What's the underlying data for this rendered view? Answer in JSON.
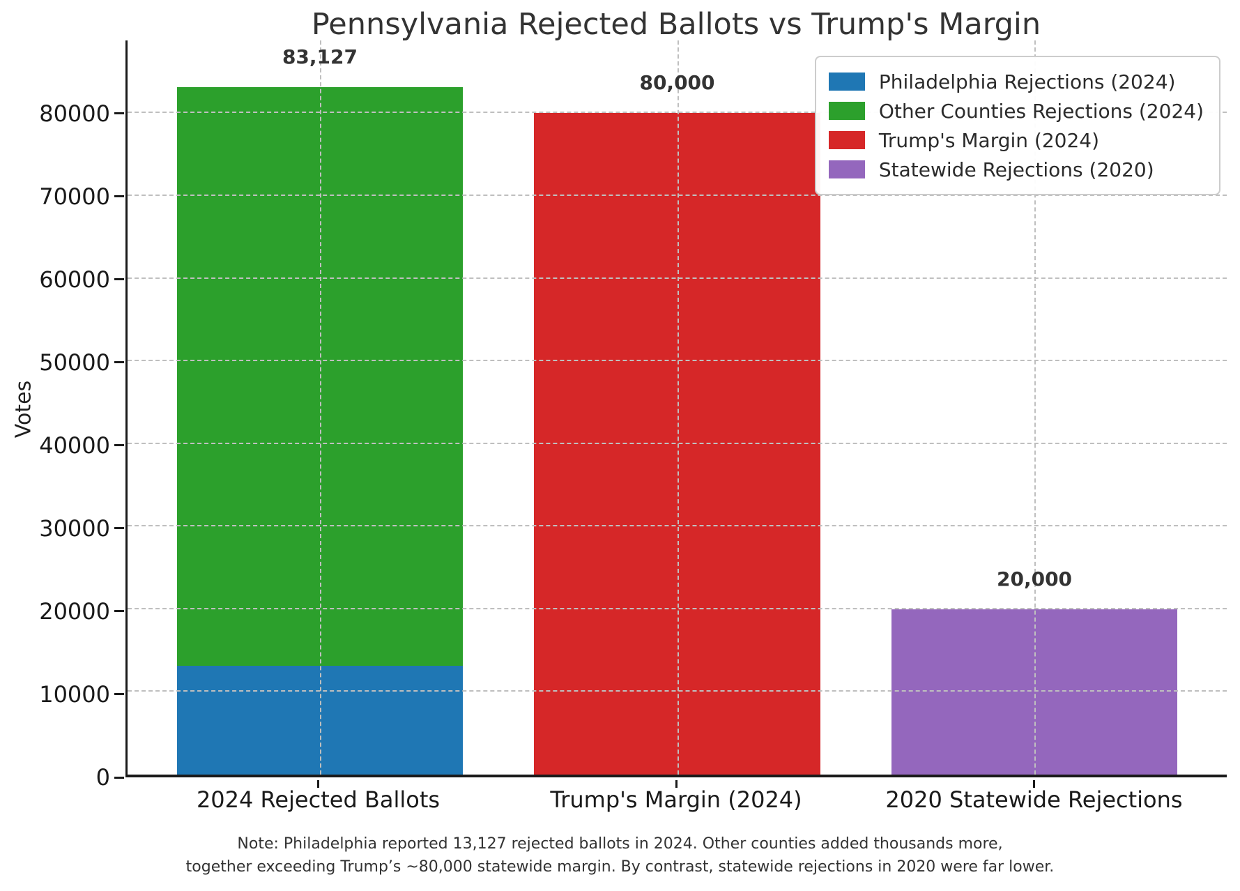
{
  "chart_data": {
    "type": "bar",
    "title": "Pennsylvania Rejected Ballots vs Trump's Margin",
    "xlabel": "",
    "ylabel": "Votes",
    "categories": [
      "2024 Rejected Ballots",
      "Trump's Margin (2024)",
      "2020 Statewide Rejections"
    ],
    "series": [
      {
        "name": "Philadelphia Rejections (2024)",
        "color": "#1f77b4",
        "values": [
          13127,
          0,
          0
        ]
      },
      {
        "name": "Other Counties Rejections (2024)",
        "color": "#2ca02c",
        "values": [
          70000,
          0,
          0
        ]
      },
      {
        "name": "Trump's Margin (2024)",
        "color": "#d62728",
        "values": [
          0,
          80000,
          0
        ]
      },
      {
        "name": "Statewide Rejections (2020)",
        "color": "#9467bd",
        "values": [
          0,
          0,
          20000
        ]
      }
    ],
    "stacked": true,
    "bar_totals": [
      83127,
      80000,
      20000
    ],
    "bar_value_labels": [
      "83,127",
      "80,000",
      "20,000"
    ],
    "yticks": [
      0,
      10000,
      20000,
      30000,
      40000,
      50000,
      60000,
      70000,
      80000
    ],
    "ytick_labels": [
      "0",
      "10000",
      "20000",
      "30000",
      "40000",
      "50000",
      "60000",
      "70000",
      "80000"
    ],
    "ylim": [
      0,
      88800
    ],
    "grid": true,
    "grid_style": "dashed",
    "legend_position": "upper right"
  },
  "note": {
    "line1": "Note: Philadelphia reported 13,127 rejected ballots in 2024. Other counties added thousands more,",
    "line2": "together exceeding Trump’s ~80,000 statewide margin. By contrast, statewide rejections in 2020 were far lower."
  }
}
